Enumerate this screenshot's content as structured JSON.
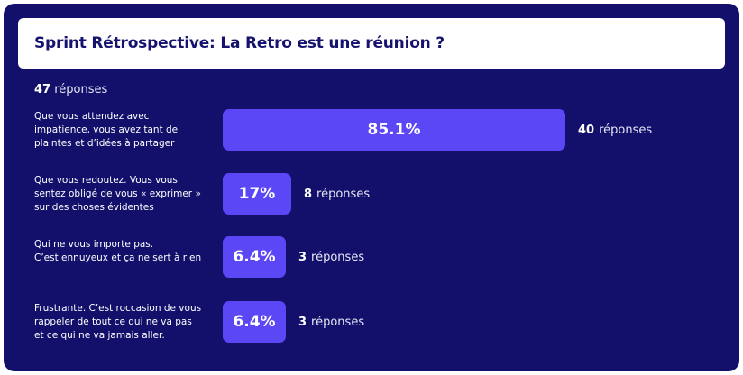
{
  "title": "Sprint Rétrospective: La Retro est une réunion ?",
  "total": {
    "count": "47",
    "label": "réponses"
  },
  "chart_data": {
    "type": "bar",
    "orientation": "horizontal",
    "categories": [
      "Que vous attendez avec\nimpatience, vous avez tant de\nplaintes et d’idées à partager",
      "Que vous redoutez. Vous vous\nsentez obligé de vous « exprimer »\nsur des choses évidentes",
      "Qui ne vous importe pas.\nC’est ennuyeux et ça ne sert à rien",
      "Frustrante. C’est roccasion de vous\nrappeler de tout ce qui ne va pas\net ce qui ne va jamais aller."
    ],
    "values": [
      85.1,
      17,
      6.4,
      6.4
    ],
    "percent_labels": [
      "85.1%",
      "17%",
      "6.4%",
      "6.4%"
    ],
    "counts": [
      "40",
      "8",
      "3",
      "3"
    ],
    "count_label": "réponses",
    "bar_color": "#5b47f5",
    "xlim": [
      0,
      100
    ]
  }
}
